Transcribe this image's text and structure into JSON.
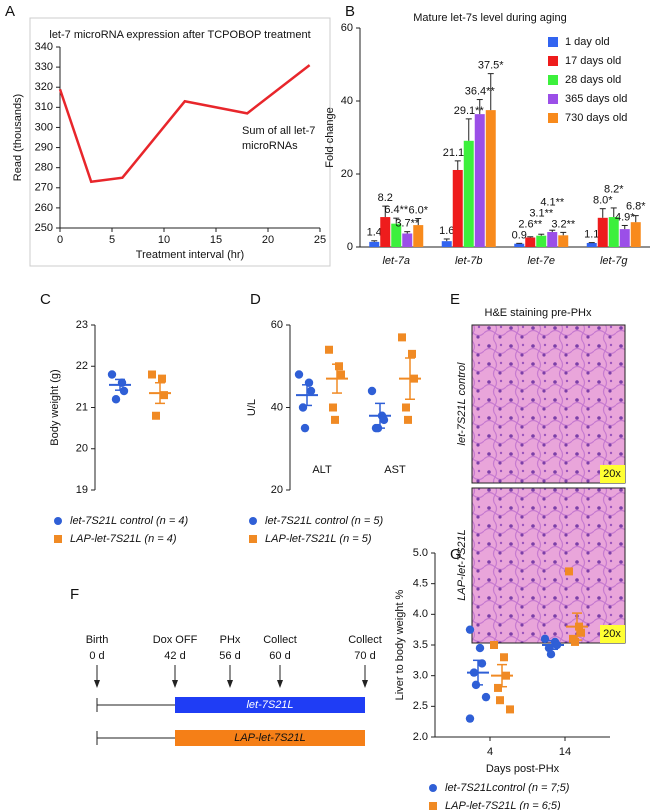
{
  "panel_labels": [
    "A",
    "B",
    "C",
    "D",
    "E",
    "F",
    "G"
  ],
  "chart_data": [
    {
      "type": "line",
      "title": "let-7 microRNA expression after TCPOBOP treatment",
      "x": [
        0,
        3,
        6,
        12,
        18,
        24
      ],
      "values": [
        319,
        273,
        275,
        313,
        307,
        331
      ],
      "color": "#e8262b",
      "xlim": [
        0,
        25
      ],
      "xticks": [
        0,
        5,
        10,
        15,
        20,
        25
      ],
      "ylim": [
        250,
        340
      ],
      "yticks": [
        250,
        260,
        270,
        280,
        290,
        300,
        310,
        320,
        330,
        340
      ],
      "xlabel": "Treatment interval (hr)",
      "ylabel": "Read (thousands)",
      "annotation": [
        "Sum of all let-7",
        "microRNAs"
      ]
    },
    {
      "type": "bar",
      "title": "Mature let-7s level during aging",
      "categories": [
        "let-7a",
        "let-7b",
        "let-7e",
        "let-7g"
      ],
      "series": [
        {
          "name": "1 day old",
          "color": "#3264f0",
          "values": [
            1.4,
            1.6,
            0.9,
            1.1
          ],
          "value_labels": [
            "1.4",
            "1.6",
            "0.9",
            "1.1"
          ],
          "errors": [
            0.3,
            0.6,
            0.1,
            0.1
          ]
        },
        {
          "name": "17 days old",
          "color": "#ee1c1c",
          "values": [
            8.2,
            21.1,
            2.6,
            8.0
          ],
          "value_labels": [
            "8.2",
            "21.1**",
            "2.6**",
            "8.0*"
          ],
          "errors": [
            3,
            2.5,
            0.2,
            2.5
          ]
        },
        {
          "name": "28 days old",
          "color": "#3cf03c",
          "values": [
            6.4,
            29.1,
            3.1,
            8.2
          ],
          "value_labels": [
            "6.4**",
            "29.1**",
            "3.1**",
            "8.2*"
          ],
          "errors": [
            1.5,
            6,
            0.4,
            2.5
          ]
        },
        {
          "name": "365 days old",
          "color": "#9b4fe8",
          "values": [
            3.7,
            36.4,
            4.1,
            4.9
          ],
          "value_labels": [
            "3.7**",
            "36.4**",
            "4.1**",
            "4.9*"
          ],
          "errors": [
            0.5,
            4,
            0.5,
            1
          ]
        },
        {
          "name": "730 days old",
          "color": "#f88a1c",
          "values": [
            6.0,
            37.5,
            3.2,
            6.8
          ],
          "value_labels": [
            "6.0*",
            "37.5*",
            "3.2**",
            "6.8*"
          ],
          "errors": [
            1.8,
            10,
            0.8,
            1.8
          ]
        }
      ],
      "ylim": [
        0,
        60
      ],
      "yticks": [
        0,
        20,
        40,
        60
      ],
      "ylabel": "Fold change",
      "legend": "upper right"
    },
    {
      "type": "strip",
      "categories": [
        null
      ],
      "series": [
        {
          "name": "let-7S21L control (n = 4)",
          "color": "#2f5fd6",
          "marker": "circle",
          "values": [
            [
              21.8,
              21.6,
              21.4,
              21.2
            ]
          ],
          "mean": [
            21.55
          ],
          "sem": [
            0.13
          ]
        },
        {
          "name": "LAP-let-7S21L (n = 4)",
          "color": "#f08a24",
          "marker": "square",
          "values": [
            [
              21.8,
              21.7,
              21.3,
              20.8
            ]
          ],
          "mean": [
            21.35
          ],
          "sem": [
            0.25
          ]
        }
      ],
      "ylim": [
        19,
        23
      ],
      "yticks": [
        19,
        20,
        21,
        22,
        23
      ],
      "ylabel": "Body weight (g)"
    },
    {
      "type": "strip",
      "categories": [
        "ALT",
        "AST"
      ],
      "series": [
        {
          "name": "let-7S21L control (n = 5)",
          "color": "#2f5fd6",
          "marker": "circle",
          "values": [
            [
              48,
              46,
              44,
              40,
              35
            ],
            [
              44,
              38,
              37,
              35,
              35
            ]
          ],
          "mean": [
            43,
            38
          ],
          "sem": [
            2.5,
            3
          ]
        },
        {
          "name": "LAP-let-7S21L (n = 5)",
          "color": "#f08a24",
          "marker": "square",
          "values": [
            [
              54,
              50,
              48,
              40,
              37
            ],
            [
              57,
              53,
              47,
              40,
              37
            ]
          ],
          "mean": [
            47,
            47
          ],
          "sem": [
            3.5,
            5
          ]
        }
      ],
      "ylim": [
        20,
        60
      ],
      "yticks": [
        20,
        40,
        60
      ],
      "ylabel": "U/L"
    },
    {
      "type": "strip",
      "categories": [
        "4",
        "14"
      ],
      "series": [
        {
          "name": "let-7S21Lcontrol (n = 7;5)",
          "color": "#2f5fd6",
          "marker": "circle",
          "values": [
            [
              3.75,
              3.45,
              3.2,
              3.05,
              2.85,
              2.65,
              2.3
            ],
            [
              3.6,
              3.55,
              3.5,
              3.45,
              3.35
            ]
          ],
          "mean": [
            3.05,
            3.5
          ],
          "sem": [
            0.2,
            0.07
          ]
        },
        {
          "name": "LAP-let-7S21L (n = 6;5)",
          "color": "#f08a24",
          "marker": "square",
          "values": [
            [
              3.5,
              3.3,
              3.0,
              2.8,
              2.6,
              2.45
            ],
            [
              4.7,
              3.8,
              3.7,
              3.6,
              3.55
            ]
          ],
          "mean": [
            3.0,
            3.8
          ],
          "sem": [
            0.18,
            0.22
          ]
        }
      ],
      "ylim": [
        2,
        5
      ],
      "yticks": [
        {
          "value": 2,
          "label": "2.0"
        },
        2.5,
        {
          "value": 3,
          "label": "3.0"
        },
        3.5,
        {
          "value": 4,
          "label": "4.0"
        },
        4.5,
        {
          "value": 5,
          "label": "5.0"
        }
      ],
      "xlabel": "Days post-PHx",
      "ylabel": "Liver to body weight %"
    }
  ],
  "histology": {
    "title": "H&E staining pre-PHx",
    "rows": [
      {
        "label": "let-7S21L control",
        "magnification": "20x"
      },
      {
        "label": "LAP-let-7S21L",
        "magnification": "20x"
      }
    ]
  },
  "timeline": {
    "events": [
      {
        "label": "Birth",
        "time": "0 d"
      },
      {
        "label": "Dox OFF",
        "time": "42 d"
      },
      {
        "label": "PHx",
        "time": "56 d"
      },
      {
        "label": "Collect",
        "time": "60 d"
      },
      {
        "label": "Collect",
        "time": "70 d"
      }
    ],
    "groups": [
      "let-7S21L",
      "LAP-let-7S21L"
    ]
  }
}
